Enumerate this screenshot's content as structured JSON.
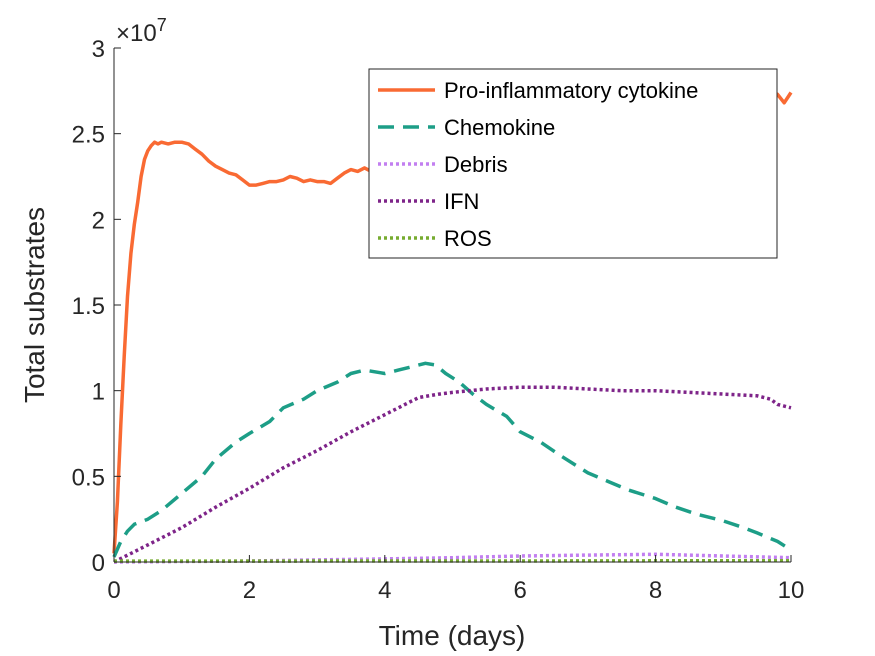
{
  "chart_data": {
    "type": "line",
    "xlabel": "Time (days)",
    "ylabel": "Total substrates",
    "y_exponent_prefix": "×10",
    "y_exponent_power": "7",
    "xlim": [
      0,
      10
    ],
    "ylim": [
      0,
      3
    ],
    "xticks": [
      0,
      2,
      4,
      6,
      8,
      10
    ],
    "xtick_labels": [
      "0",
      "2",
      "4",
      "6",
      "8",
      "10"
    ],
    "yticks": [
      0,
      0.5,
      1,
      1.5,
      2,
      2.5,
      3
    ],
    "ytick_labels": [
      "0",
      "0.5",
      "1",
      "1.5",
      "2",
      "2.5",
      "3"
    ],
    "grid": false,
    "legend_position": "top-right",
    "series": [
      {
        "name": "Pro-inflammatory cytokine",
        "color": "#f96a33",
        "style": "solid",
        "x": [
          0,
          0.05,
          0.1,
          0.15,
          0.2,
          0.25,
          0.3,
          0.35,
          0.4,
          0.45,
          0.5,
          0.55,
          0.6,
          0.65,
          0.7,
          0.8,
          0.9,
          1.0,
          1.1,
          1.2,
          1.3,
          1.4,
          1.5,
          1.6,
          1.7,
          1.8,
          1.9,
          2.0,
          2.1,
          2.2,
          2.3,
          2.4,
          2.5,
          2.6,
          2.7,
          2.8,
          2.9,
          3.0,
          3.1,
          3.2,
          3.3,
          3.4,
          3.5,
          3.6,
          3.7,
          3.8,
          3.85,
          9.4,
          9.5,
          9.6,
          9.7,
          9.8,
          9.9,
          10.0
        ],
        "values": [
          0.05,
          0.35,
          0.8,
          1.2,
          1.55,
          1.8,
          1.97,
          2.1,
          2.25,
          2.35,
          2.4,
          2.43,
          2.45,
          2.44,
          2.45,
          2.44,
          2.45,
          2.45,
          2.44,
          2.41,
          2.38,
          2.34,
          2.31,
          2.29,
          2.27,
          2.26,
          2.23,
          2.2,
          2.2,
          2.21,
          2.22,
          2.22,
          2.23,
          2.25,
          2.24,
          2.22,
          2.23,
          2.22,
          2.22,
          2.21,
          2.24,
          2.27,
          2.29,
          2.28,
          2.3,
          2.28,
          2.27,
          2.72,
          2.74,
          2.76,
          2.75,
          2.73,
          2.68,
          2.74
        ]
      },
      {
        "name": "Chemokine",
        "color": "#1d9e87",
        "style": "dashed",
        "x": [
          0,
          0.1,
          0.2,
          0.3,
          0.5,
          0.7,
          1.0,
          1.3,
          1.5,
          1.8,
          2.0,
          2.3,
          2.5,
          2.8,
          3.0,
          3.3,
          3.5,
          3.7,
          4.0,
          4.2,
          4.4,
          4.6,
          4.75,
          4.9,
          5.1,
          5.3,
          5.5,
          5.8,
          6.0,
          6.3,
          6.6,
          7.0,
          7.3,
          7.6,
          8.0,
          8.3,
          8.6,
          9.0,
          9.3,
          9.5,
          9.8,
          10.0
        ],
        "values": [
          0.03,
          0.12,
          0.18,
          0.22,
          0.25,
          0.3,
          0.4,
          0.5,
          0.6,
          0.7,
          0.75,
          0.82,
          0.9,
          0.95,
          1.0,
          1.05,
          1.1,
          1.12,
          1.1,
          1.12,
          1.14,
          1.16,
          1.15,
          1.1,
          1.05,
          0.98,
          0.92,
          0.85,
          0.76,
          0.7,
          0.62,
          0.52,
          0.47,
          0.42,
          0.37,
          0.32,
          0.28,
          0.24,
          0.2,
          0.17,
          0.12,
          0.07
        ]
      },
      {
        "name": "Debris",
        "color": "#c27ff0",
        "style": "dotted",
        "x": [
          0,
          1,
          2,
          3,
          4,
          5,
          6,
          7,
          8,
          9,
          10
        ],
        "values": [
          0,
          0.003,
          0.006,
          0.012,
          0.018,
          0.025,
          0.035,
          0.04,
          0.045,
          0.035,
          0.025
        ]
      },
      {
        "name": "IFN",
        "color": "#7e2489",
        "style": "dotted",
        "x": [
          0,
          0.5,
          1.0,
          1.5,
          2.0,
          2.5,
          3.0,
          3.5,
          4.0,
          4.5,
          4.8,
          5.0,
          5.5,
          6.0,
          6.5,
          7.0,
          7.5,
          8.0,
          8.5,
          9.0,
          9.5,
          9.7,
          9.8,
          10.0
        ],
        "values": [
          0,
          0.1,
          0.2,
          0.32,
          0.43,
          0.55,
          0.65,
          0.76,
          0.86,
          0.96,
          0.98,
          0.99,
          1.01,
          1.02,
          1.02,
          1.01,
          1.0,
          1.0,
          0.99,
          0.98,
          0.97,
          0.95,
          0.92,
          0.9
        ]
      },
      {
        "name": "ROS",
        "color": "#77ac30",
        "style": "dotted",
        "x": [
          0,
          2,
          4,
          6,
          8,
          10
        ],
        "values": [
          0.005,
          0.005,
          0.006,
          0.006,
          0.007,
          0.007
        ]
      }
    ]
  }
}
